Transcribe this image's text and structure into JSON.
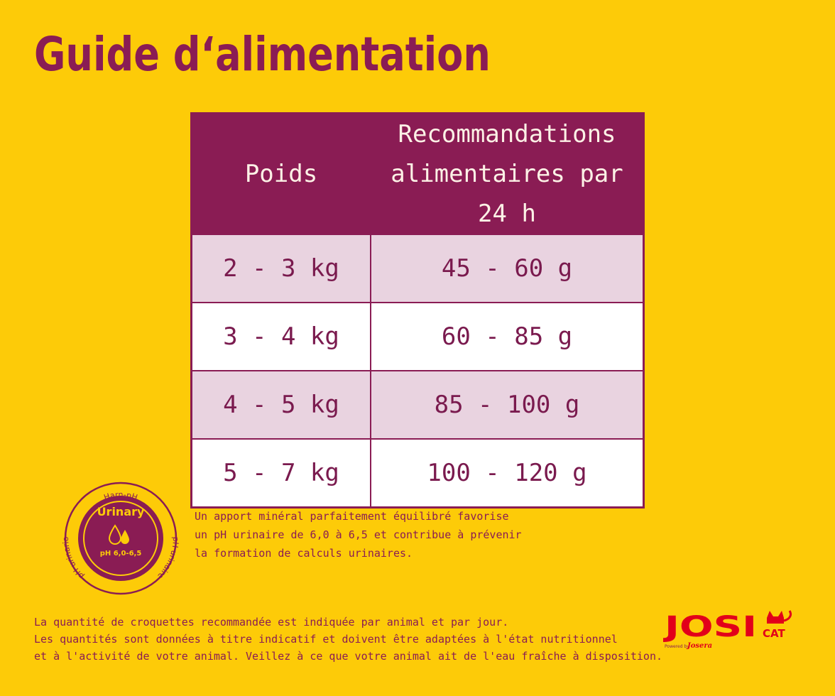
{
  "title": "Guide d‘alimentation",
  "table": {
    "headers": [
      "Poids",
      "Recommandations",
      "alimentaires par 24 h"
    ],
    "rows": [
      {
        "weight": "2 - 3 kg",
        "amount": "45 - 60 g"
      },
      {
        "weight": "3 - 4 kg",
        "amount": "60 - 85 g"
      },
      {
        "weight": "4 - 5 kg",
        "amount": "85 - 100 g"
      },
      {
        "weight": "5 - 7 kg",
        "amount": "100 - 120 g"
      }
    ]
  },
  "badge": {
    "top": "Harn-pH",
    "left": "pH urinario",
    "right": "pH urinaire",
    "label": "Urinary",
    "ph": "pH 6,0-6,5"
  },
  "note": [
    "Un apport minéral parfaitement équilibré favorise",
    "un pH urinaire de 6,0 à 6,5 et contribue à prévenir",
    "la formation de calculs urinaires."
  ],
  "footer": [
    "La quantité de croquettes recommandée est indiquée par animal et par jour.",
    "Les quantités sont données à titre indicatif et doivent être adaptées à l'état nutritionnel",
    "et à l'activité de votre animal. Veillez à ce que votre animal ait de l'eau fraîche à disposition."
  ],
  "logo": {
    "brand": "JOSI",
    "sub": "CAT",
    "powered": "Powered by",
    "maker": "Josera"
  },
  "colors": {
    "background": "#FDCB08",
    "primary": "#8A1C54",
    "row_shade": "#E9D3E0",
    "logo_red": "#E2001A"
  }
}
